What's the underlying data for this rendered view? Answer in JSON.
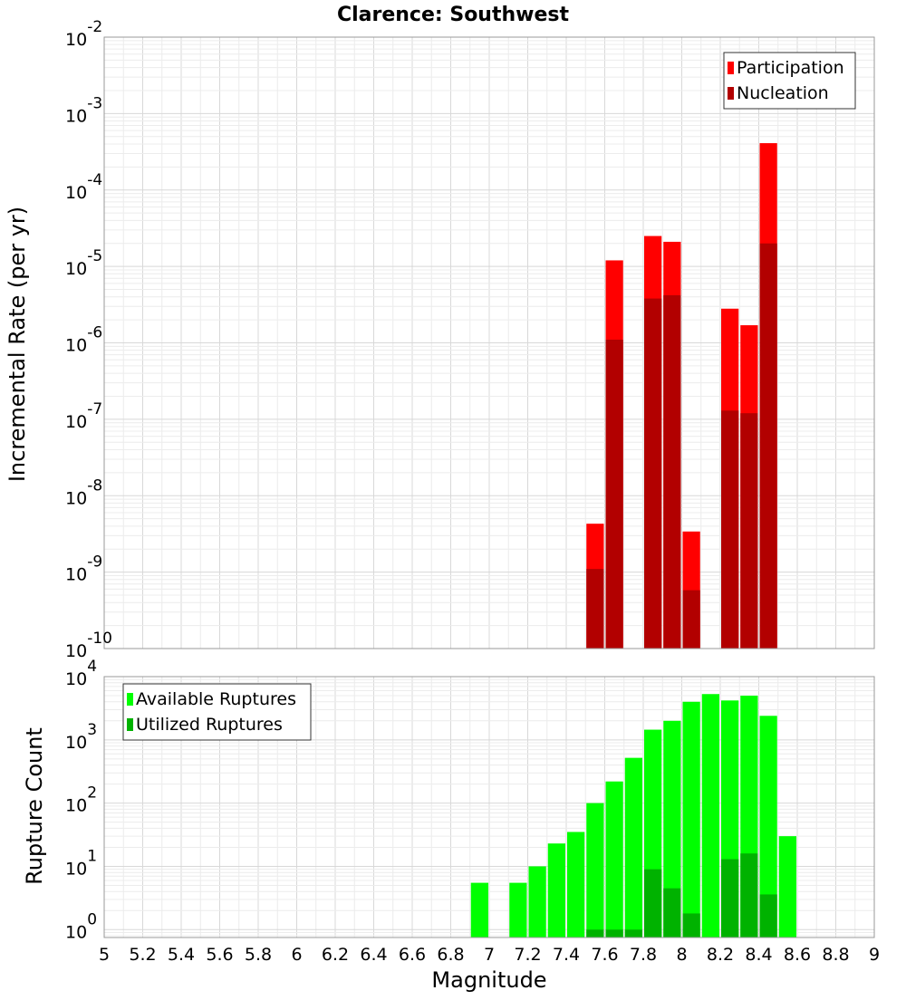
{
  "chart_data": [
    {
      "type": "bar",
      "title": "Clarence: Southwest",
      "ylabel": "Incremental Rate (per yr)",
      "xlabel": "",
      "y_scale": "log",
      "ylim": [
        1e-10,
        0.01
      ],
      "xlim": [
        5,
        9
      ],
      "grid": true,
      "legend_position": "top-right",
      "y_ticks": [
        {
          "base": "10",
          "exp": "-10"
        },
        {
          "base": "10",
          "exp": "-9"
        },
        {
          "base": "10",
          "exp": "-8"
        },
        {
          "base": "10",
          "exp": "-7"
        },
        {
          "base": "10",
          "exp": "-6"
        },
        {
          "base": "10",
          "exp": "-5"
        },
        {
          "base": "10",
          "exp": "-4"
        },
        {
          "base": "10",
          "exp": "-3"
        },
        {
          "base": "10",
          "exp": "-2"
        }
      ],
      "series": [
        {
          "name": "Participation",
          "color": "#ff0000",
          "points": [
            {
              "x": 7.55,
              "y": 4.3e-09
            },
            {
              "x": 7.65,
              "y": 1.2e-05
            },
            {
              "x": 7.85,
              "y": 2.5e-05
            },
            {
              "x": 7.95,
              "y": 2.1e-05
            },
            {
              "x": 8.05,
              "y": 3.4e-09
            },
            {
              "x": 8.25,
              "y": 2.8e-06
            },
            {
              "x": 8.35,
              "y": 1.7e-06
            },
            {
              "x": 8.45,
              "y": 0.00041
            }
          ]
        },
        {
          "name": "Nucleation",
          "color": "#b20000",
          "points": [
            {
              "x": 7.55,
              "y": 1.1e-09
            },
            {
              "x": 7.65,
              "y": 1.1e-06
            },
            {
              "x": 7.85,
              "y": 3.8e-06
            },
            {
              "x": 7.95,
              "y": 4.2e-06
            },
            {
              "x": 8.05,
              "y": 5.8e-10
            },
            {
              "x": 8.25,
              "y": 1.3e-07
            },
            {
              "x": 8.35,
              "y": 1.2e-07
            },
            {
              "x": 8.45,
              "y": 2e-05
            }
          ]
        }
      ]
    },
    {
      "type": "bar",
      "title": "",
      "ylabel": "Rupture Count",
      "xlabel": "Magnitude",
      "y_scale": "log",
      "ylim": [
        0.75,
        10000
      ],
      "xlim": [
        5,
        9
      ],
      "grid": true,
      "legend_position": "top-left",
      "x_ticks": [
        "5",
        "5.2",
        "5.4",
        "5.6",
        "5.8",
        "6",
        "6.2",
        "6.4",
        "6.6",
        "6.8",
        "7",
        "7.2",
        "7.4",
        "7.6",
        "7.8",
        "8",
        "8.2",
        "8.4",
        "8.6",
        "8.8",
        "9"
      ],
      "y_ticks": [
        {
          "base": "10",
          "exp": "0"
        },
        {
          "base": "10",
          "exp": "1"
        },
        {
          "base": "10",
          "exp": "2"
        },
        {
          "base": "10",
          "exp": "3"
        },
        {
          "base": "10",
          "exp": "4"
        }
      ],
      "series": [
        {
          "name": "Available Ruptures",
          "color": "#00ff00",
          "points": [
            {
              "x": 6.95,
              "y": 5.5
            },
            {
              "x": 7.15,
              "y": 5.5
            },
            {
              "x": 7.25,
              "y": 10
            },
            {
              "x": 7.35,
              "y": 23
            },
            {
              "x": 7.45,
              "y": 35
            },
            {
              "x": 7.55,
              "y": 100
            },
            {
              "x": 7.65,
              "y": 220
            },
            {
              "x": 7.75,
              "y": 520
            },
            {
              "x": 7.85,
              "y": 1450
            },
            {
              "x": 7.95,
              "y": 2000
            },
            {
              "x": 8.05,
              "y": 4000
            },
            {
              "x": 8.15,
              "y": 5300
            },
            {
              "x": 8.25,
              "y": 4200
            },
            {
              "x": 8.35,
              "y": 5000
            },
            {
              "x": 8.45,
              "y": 2400
            },
            {
              "x": 8.55,
              "y": 30
            }
          ]
        },
        {
          "name": "Utilized Ruptures",
          "color": "#00b200",
          "points": [
            {
              "x": 7.55,
              "y": 1
            },
            {
              "x": 7.65,
              "y": 1
            },
            {
              "x": 7.75,
              "y": 1
            },
            {
              "x": 7.85,
              "y": 9
            },
            {
              "x": 7.95,
              "y": 4.5
            },
            {
              "x": 8.05,
              "y": 1.8
            },
            {
              "x": 8.25,
              "y": 13
            },
            {
              "x": 8.35,
              "y": 16
            },
            {
              "x": 8.45,
              "y": 3.6
            }
          ]
        }
      ]
    }
  ]
}
